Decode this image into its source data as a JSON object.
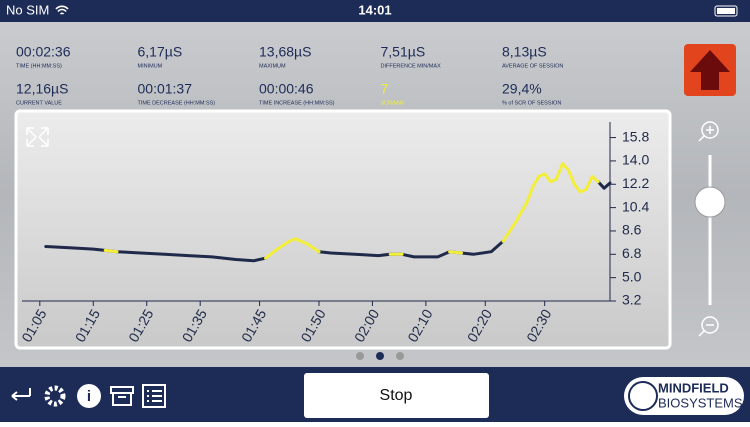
{
  "status_bar": {
    "carrier": "No SIM",
    "time": "14:01"
  },
  "stats": [
    {
      "value": "00:02:36",
      "label": "TIME (HH:MM:SS)"
    },
    {
      "value": "6,17µS",
      "label": "MINIMUM"
    },
    {
      "value": "13,68µS",
      "label": "MAXIMUM"
    },
    {
      "value": "7,51µS",
      "label": "DIFFERENCE MIN/MAX"
    },
    {
      "value": "8,13µS",
      "label": "AVERAGE OF SESSION"
    },
    {
      "value": "12,16µS",
      "label": "CURRENT VALUE"
    },
    {
      "value": "00:01:37",
      "label": "TIME DECREASE (HH:MM:SS)"
    },
    {
      "value": "00:00:46",
      "label": "TIME INCREASE (HH:MM:SS)"
    },
    {
      "value": "7",
      "label": "SCR/MIN",
      "color": "#f2ee3a"
    },
    {
      "value": "29,4%",
      "label": "% of SCR OF SESSION"
    }
  ],
  "chart_data": {
    "type": "line",
    "x": [
      66,
      70,
      74,
      76,
      78,
      82,
      86,
      90,
      94,
      98,
      101,
      103,
      105,
      107,
      108,
      110,
      112,
      114,
      118,
      122,
      124,
      126,
      128,
      132,
      134,
      136,
      138,
      141,
      143,
      145,
      147,
      148,
      149,
      150,
      151,
      152,
      153,
      154,
      155,
      156,
      157,
      158,
      159,
      160,
      161
    ],
    "series": [
      {
        "color": "#1f2a4a",
        "values": [
          7.4,
          7.3,
          7.2,
          7.1,
          7.0,
          6.9,
          6.8,
          6.7,
          6.6,
          6.4,
          6.3,
          6.5,
          null,
          null,
          null,
          null,
          7.0,
          6.9,
          6.8,
          6.7,
          6.8,
          6.8,
          6.6,
          6.6,
          7.0,
          6.9,
          6.8,
          7.0,
          7.8,
          null,
          null,
          null,
          null,
          null,
          null,
          null,
          null,
          null,
          null,
          null,
          null,
          null,
          12.4,
          11.9,
          12.3
        ]
      },
      {
        "color": "#f2ee3a",
        "values": [
          null,
          null,
          null,
          7.1,
          7.0,
          null,
          null,
          null,
          null,
          null,
          null,
          6.5,
          7.2,
          7.8,
          8.0,
          7.6,
          7.0,
          null,
          null,
          null,
          6.8,
          6.8,
          null,
          null,
          7.0,
          6.9,
          null,
          null,
          7.8,
          9.2,
          10.8,
          12.0,
          12.8,
          13.0,
          12.4,
          12.6,
          13.8,
          13.3,
          12.2,
          11.6,
          11.8,
          12.8,
          12.4,
          null,
          null
        ]
      }
    ],
    "xlim": [
      62,
      161
    ],
    "xticks": [
      {
        "value": 65,
        "label": "01:05"
      },
      {
        "value": 74,
        "label": "01:15"
      },
      {
        "value": 83,
        "label": "01:25"
      },
      {
        "value": 92,
        "label": "01:35"
      },
      {
        "value": 102,
        "label": "01:45"
      },
      {
        "value": 112,
        "label": "01:50"
      },
      {
        "value": 121,
        "label": "02:00"
      },
      {
        "value": 130,
        "label": "02:10"
      },
      {
        "value": 140,
        "label": "02:20"
      },
      {
        "value": 150,
        "label": "02:30"
      }
    ],
    "ylim": [
      3.2,
      17
    ],
    "yticks": [
      3.2,
      {
        "value": 5,
        "label": "5.0"
      },
      6.8,
      8.6,
      10.4,
      12.2,
      {
        "value": 14,
        "label": "14.0"
      },
      15.8
    ]
  },
  "buttons": {
    "stop": "Stop"
  },
  "logo": {
    "line1": "MINDFIELD",
    "line2": "BIOSYSTEMS"
  }
}
